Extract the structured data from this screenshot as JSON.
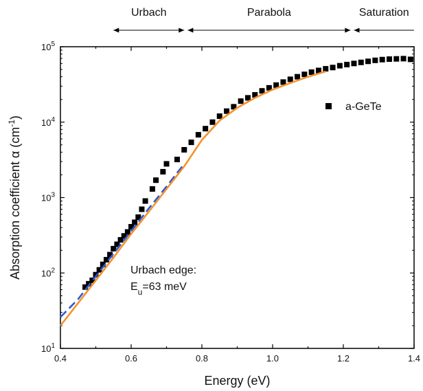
{
  "chart_data": {
    "type": "scatter",
    "xlabel": "Energy (eV)",
    "ylabel": "Absorption coefficient α (cm",
    "ylabel_sup": "-1",
    "ylabel_end": ")",
    "xlim": [
      0.4,
      1.4
    ],
    "ylim": [
      10,
      100000
    ],
    "yscale": "log",
    "grid": false,
    "x_ticks": [
      0.4,
      0.6,
      0.8,
      1.0,
      1.2,
      1.4
    ],
    "x_tick_labels": [
      "0.4",
      "0.6",
      "0.8",
      "1.0",
      "1.2",
      "1.4"
    ],
    "y_ticks": [
      10,
      100,
      1000,
      10000,
      100000
    ],
    "y_tick_base": "10",
    "y_tick_exps": [
      "1",
      "2",
      "3",
      "4",
      "5"
    ],
    "legend": {
      "position": "top-right",
      "label": "a-GeTe"
    },
    "regions": [
      {
        "label": "Urbach",
        "x_start": 0.55,
        "x_end": 0.75
      },
      {
        "label": "Parabola",
        "x_start": 0.76,
        "x_end": 1.22
      },
      {
        "label": "Saturation",
        "x_start": 1.23,
        "x_end": 1.4
      }
    ],
    "annotation": {
      "line1": "Urbach edge:",
      "line2_main": "E",
      "line2_sub": "u",
      "line2_rest": "=63 meV"
    },
    "series": [
      {
        "name": "a-GeTe",
        "kind": "scatter",
        "color": "#000000",
        "x": [
          0.47,
          0.48,
          0.49,
          0.5,
          0.51,
          0.52,
          0.53,
          0.54,
          0.55,
          0.56,
          0.57,
          0.58,
          0.59,
          0.6,
          0.61,
          0.62,
          0.63,
          0.64,
          0.66,
          0.67,
          0.69,
          0.7,
          0.73,
          0.75,
          0.77,
          0.79,
          0.81,
          0.83,
          0.85,
          0.87,
          0.89,
          0.91,
          0.93,
          0.95,
          0.97,
          0.99,
          1.01,
          1.03,
          1.05,
          1.07,
          1.09,
          1.11,
          1.13,
          1.15,
          1.17,
          1.19,
          1.21,
          1.23,
          1.25,
          1.27,
          1.29,
          1.31,
          1.33,
          1.35,
          1.37,
          1.39
        ],
        "y": [
          65,
          72,
          80,
          95,
          110,
          130,
          150,
          175,
          210,
          240,
          275,
          310,
          350,
          410,
          470,
          550,
          700,
          900,
          1300,
          1700,
          2200,
          2800,
          3200,
          4300,
          5400,
          6800,
          8200,
          10000,
          12000,
          14000,
          16000,
          19000,
          21000,
          23000,
          26000,
          28500,
          31000,
          34000,
          37000,
          40000,
          43000,
          46000,
          48500,
          51000,
          53000,
          56000,
          58000,
          60000,
          62000,
          64000,
          66000,
          67500,
          68500,
          69000,
          69500,
          68000
        ]
      },
      {
        "name": "",
        "kind": "line",
        "dash": true,
        "color": "#2a5bd7",
        "x": [
          0.4,
          0.45,
          0.5,
          0.55,
          0.6,
          0.65,
          0.7,
          0.75
        ],
        "y": [
          26,
          45,
          90,
          180,
          360,
          720,
          1400,
          2800
        ]
      },
      {
        "name": "",
        "kind": "line",
        "dash": false,
        "color": "#f5922a",
        "x": [
          0.4,
          0.45,
          0.5,
          0.55,
          0.6,
          0.65,
          0.7,
          0.75,
          0.8,
          0.85,
          0.9,
          0.95,
          1.0,
          1.05,
          1.1,
          1.15
        ],
        "y": [
          20,
          40,
          80,
          160,
          330,
          650,
          1300,
          2600,
          5800,
          10500,
          15500,
          21000,
          27000,
          33000,
          40000,
          47000
        ]
      }
    ]
  }
}
